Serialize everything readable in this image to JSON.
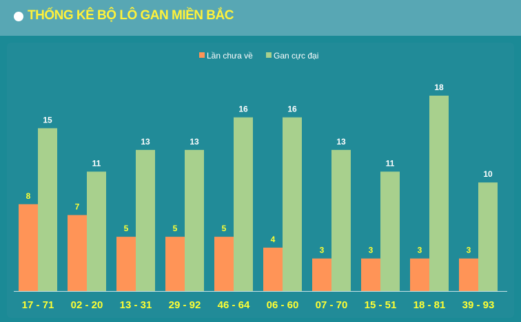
{
  "header": {
    "title": "THỐNG KÊ BỘ LÔ GAN MIỀN BẮC"
  },
  "colors": {
    "series1": "#ff9457",
    "series2": "#a8d08d",
    "label1": "#ffff33",
    "label2": "#ffffff",
    "axis_labels": "#ffff33"
  },
  "chart_data": {
    "type": "bar",
    "title": "",
    "xlabel": "",
    "ylabel": "",
    "categories": [
      "17 - 71",
      "02 - 20",
      "13 - 31",
      "29 - 92",
      "46 - 64",
      "06 - 60",
      "07 - 70",
      "15 - 51",
      "18 - 81",
      "39 - 93"
    ],
    "series": [
      {
        "name": "Lần chưa về",
        "values": [
          8,
          7,
          5,
          5,
          5,
          4,
          3,
          3,
          3,
          3
        ]
      },
      {
        "name": "Gan cực đại",
        "values": [
          15,
          11,
          13,
          13,
          16,
          16,
          13,
          11,
          18,
          10
        ]
      }
    ],
    "ylim": [
      0,
      18
    ],
    "grid": false,
    "legend": "top-center"
  }
}
